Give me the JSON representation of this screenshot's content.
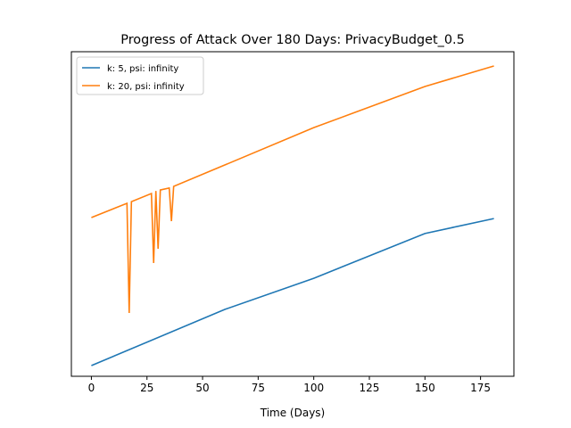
{
  "chart_data": {
    "type": "line",
    "title": "Progress of Attack Over 180 Days: PrivacyBudget_0.5",
    "x_label": "Time (Days)",
    "xlim": [
      -9,
      190
    ],
    "xticks": [
      0,
      25,
      50,
      75,
      100,
      125,
      150,
      175
    ],
    "ylim": [
      0,
      100
    ],
    "legend": "upper left",
    "series": [
      {
        "name": "k: 5, psi: infinity",
        "color": "#1f77b4",
        "x": [
          0,
          60,
          100,
          150,
          181
        ],
        "values": [
          3.3,
          20.6,
          30.2,
          44,
          48.6
        ]
      },
      {
        "name": "k: 20, psi: infinity",
        "color": "#ff7f0e",
        "x": [
          0,
          16,
          17,
          18,
          27,
          28,
          29,
          30,
          31,
          35,
          36,
          37,
          60,
          100,
          150,
          181
        ],
        "values": [
          48.9,
          53.3,
          19.5,
          53.8,
          56.3,
          34.9,
          57.1,
          39.3,
          57.4,
          58,
          47.8,
          58.5,
          65.1,
          76.6,
          89.3,
          95.6
        ]
      }
    ]
  }
}
